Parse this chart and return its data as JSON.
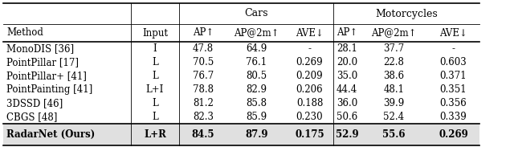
{
  "title_cars": "Cars",
  "title_motorcycles": "Motorcycles",
  "col_headers": [
    "Method",
    "Input",
    "AP↑",
    "AP@2m↑",
    "AVE↓",
    "AP↑",
    "AP@2m↑",
    "AVE↓"
  ],
  "rows": [
    [
      "MonoDIS [36]",
      "I",
      "47.8",
      "64.9",
      "-",
      "28.1",
      "37.7",
      "-"
    ],
    [
      "PointPillar [17]",
      "L",
      "70.5",
      "76.1",
      "0.269",
      "20.0",
      "22.8",
      "0.603"
    ],
    [
      "PointPillar+ [41]",
      "L",
      "76.7",
      "80.5",
      "0.209",
      "35.0",
      "38.6",
      "0.371"
    ],
    [
      "PointPainting [41]",
      "L+I",
      "78.8",
      "82.9",
      "0.206",
      "44.4",
      "48.1",
      "0.351"
    ],
    [
      "3DSSD [46]",
      "L",
      "81.2",
      "85.8",
      "0.188",
      "36.0",
      "39.9",
      "0.356"
    ],
    [
      "CBGS [48]",
      "L",
      "82.3",
      "85.9",
      "0.230",
      "50.6",
      "52.4",
      "0.339"
    ]
  ],
  "last_row": [
    "RadarNet (Ours)",
    "L+R",
    "84.5",
    "87.9",
    "0.175",
    "52.9",
    "55.6",
    "0.269"
  ],
  "bg_color": "#ffffff",
  "last_row_bg": "#e0e0e0",
  "fontsize": 8.5,
  "title_fontsize": 9
}
